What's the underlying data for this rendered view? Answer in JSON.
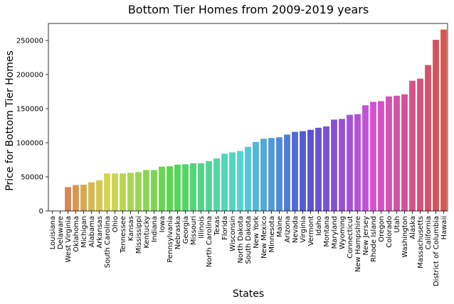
{
  "chart_data": {
    "type": "bar",
    "title": "Bottom Tier Homes from 2009-2019 years",
    "xlabel": "States",
    "ylabel": "Price for Bottom Tier Homes",
    "ylim": [
      0,
      275000
    ],
    "yticks": [
      0,
      50000,
      100000,
      150000,
      200000,
      250000
    ],
    "ytick_labels": [
      "0",
      "50000",
      "100000",
      "150000",
      "200000",
      "250000"
    ],
    "grid": false,
    "palette": "husl",
    "categories": [
      "Louisiana",
      "Delaware",
      "West Virginia",
      "Oklahoma",
      "Michigan",
      "Alabama",
      "Arkansas",
      "South Carolina",
      "Ohio",
      "Tennessee",
      "Kansas",
      "Mississippi",
      "Kentucky",
      "Indiana",
      "Iowa",
      "Pennsylvania",
      "Nebraska",
      "Georgia",
      "Missouri",
      "Illinois",
      "North Carolina",
      "Texas",
      "Florida",
      "Wisconsin",
      "North Dakota",
      "South Dakota",
      "New York",
      "New Mexico",
      "Minnesota",
      "Maine",
      "Arizona",
      "Nevada",
      "Virginia",
      "Vermont",
      "Idaho",
      "Montana",
      "Maryland",
      "Wyoming",
      "Connecticut",
      "New Hampshire",
      "New Jersey",
      "Rhode Island",
      "Oregon",
      "Colorado",
      "Utah",
      "Washington",
      "Alaska",
      "Massachusetts",
      "California",
      "District of Columbia",
      "Hawaii"
    ],
    "values": [
      0,
      0,
      35000,
      38000,
      38500,
      42000,
      45000,
      55000,
      55000,
      55000,
      56000,
      57000,
      60000,
      60000,
      65000,
      65500,
      68000,
      68500,
      70000,
      70000,
      73000,
      77000,
      84000,
      86000,
      88000,
      94000,
      101000,
      106000,
      107000,
      108000,
      112000,
      116000,
      117000,
      119000,
      122000,
      124000,
      134000,
      135000,
      141000,
      142000,
      155000,
      160000,
      161000,
      168000,
      169000,
      171000,
      191000,
      194000,
      214000,
      251000,
      266000
    ]
  }
}
